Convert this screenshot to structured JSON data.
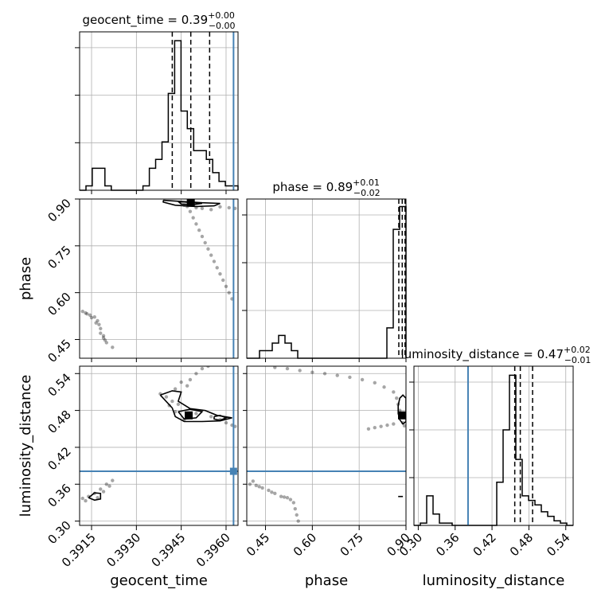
{
  "chart_data": {
    "type": "corner",
    "parameters": [
      {
        "name": "geocent_time",
        "label": "geocent_time",
        "title_main": "geocent_time = 0.39",
        "title_sup": "+0.00",
        "title_sub": "−0.00",
        "range": [
          0.3911,
          0.3964
        ],
        "ticks": [
          0.3915,
          0.393,
          0.3945,
          0.396
        ],
        "tick_labels": [
          "0.3915",
          "0.3930",
          "0.3945",
          "0.3960"
        ],
        "truth": 0.39625,
        "quantiles": [
          0.3942,
          0.39482,
          0.39545
        ],
        "median": 0.39482
      },
      {
        "name": "phase",
        "label": "phase",
        "title_main": "phase = 0.89",
        "title_sup": "+0.01",
        "title_sub": "−0.02",
        "range": [
          0.39,
          0.9
        ],
        "ticks": [
          0.45,
          0.6,
          0.75,
          0.9
        ],
        "tick_labels": [
          "0.45",
          "0.60",
          "0.75",
          "0.90"
        ],
        "truth": null,
        "quantiles": [
          0.877,
          0.888,
          0.897
        ],
        "median": 0.888
      },
      {
        "name": "luminosity_distance",
        "label": "luminosity_distance",
        "title_main": "luminosity_distance = 0.47",
        "title_sup": "+0.02",
        "title_sub": "−0.01",
        "range": [
          0.293,
          0.552
        ],
        "ticks": [
          0.3,
          0.36,
          0.42,
          0.48,
          0.54
        ],
        "tick_labels": [
          "0.30",
          "0.36",
          "0.42",
          "0.48",
          "0.54"
        ],
        "truth": 0.381,
        "quantiles": [
          0.457,
          0.466,
          0.486
        ],
        "median": 0.466
      }
    ],
    "histograms": [
      {
        "param": "geocent_time",
        "bins": 25,
        "counts": [
          0,
          1,
          5,
          5,
          1,
          0,
          0,
          0,
          0,
          0,
          1,
          5,
          7,
          11,
          22,
          34,
          18,
          14,
          9,
          9,
          7,
          4,
          2,
          1,
          1
        ],
        "ymax": 36
      },
      {
        "param": "phase",
        "bins": 25,
        "counts": [
          0,
          0,
          1,
          1,
          2,
          3,
          2,
          1,
          0,
          0,
          0,
          0,
          0,
          0,
          0,
          0,
          0,
          0,
          0,
          0,
          0,
          0,
          4,
          17,
          20
        ],
        "ymax": 21
      },
      {
        "param": "luminosity_distance",
        "bins": 25,
        "counts": [
          0,
          1,
          13,
          5,
          1,
          1,
          0,
          0,
          0,
          0,
          0,
          0,
          0,
          19,
          42,
          66,
          29,
          13,
          11,
          9,
          6,
          4,
          2,
          1,
          0
        ],
        "ymax": 70
      }
    ],
    "pairs": [
      {
        "x": "geocent_time",
        "y": "phase",
        "samples": [
          [
            0.3913,
            0.535
          ],
          [
            0.39145,
            0.528
          ],
          [
            0.3916,
            0.522
          ],
          [
            0.3917,
            0.51
          ],
          [
            0.39175,
            0.498
          ],
          [
            0.3918,
            0.485
          ],
          [
            0.3918,
            0.47
          ],
          [
            0.3919,
            0.455
          ],
          [
            0.392,
            0.44
          ],
          [
            0.3922,
            0.425
          ],
          [
            0.3912,
            0.54
          ],
          [
            0.39135,
            0.532
          ],
          [
            0.3915,
            0.52
          ],
          [
            0.39165,
            0.503
          ],
          [
            0.3919,
            0.462
          ],
          [
            0.39195,
            0.448
          ],
          [
            0.3946,
            0.88
          ],
          [
            0.3947,
            0.876
          ],
          [
            0.395,
            0.872
          ],
          [
            0.3952,
            0.87
          ],
          [
            0.3955,
            0.866
          ],
          [
            0.3948,
            0.86
          ],
          [
            0.3949,
            0.84
          ],
          [
            0.395,
            0.82
          ],
          [
            0.3951,
            0.8
          ],
          [
            0.3952,
            0.78
          ],
          [
            0.3953,
            0.76
          ],
          [
            0.3954,
            0.74
          ],
          [
            0.3955,
            0.72
          ],
          [
            0.3956,
            0.7
          ],
          [
            0.3957,
            0.68
          ],
          [
            0.3958,
            0.66
          ],
          [
            0.3959,
            0.64
          ],
          [
            0.396,
            0.62
          ],
          [
            0.3961,
            0.6
          ],
          [
            0.3962,
            0.58
          ],
          [
            0.3963,
            0.87
          ],
          [
            0.3961,
            0.872
          ],
          [
            0.3958,
            0.875
          ]
        ],
        "contours": [
          [
            [
              0.3939,
              0.896
            ],
            [
              0.3945,
              0.892
            ],
            [
              0.3952,
              0.888
            ],
            [
              0.3958,
              0.886
            ],
            [
              0.3956,
              0.878
            ],
            [
              0.395,
              0.876
            ],
            [
              0.3943,
              0.88
            ],
            [
              0.3939,
              0.89
            ],
            [
              0.3939,
              0.896
            ]
          ],
          [
            [
              0.3944,
              0.892
            ],
            [
              0.3948,
              0.889
            ],
            [
              0.3952,
              0.886
            ],
            [
              0.3949,
              0.882
            ],
            [
              0.3945,
              0.884
            ],
            [
              0.3944,
              0.892
            ]
          ]
        ],
        "peak": [
          0.39482,
          0.888
        ],
        "truth_x": 0.39625,
        "truth_y": null
      },
      {
        "x": "geocent_time",
        "y": "luminosity_distance",
        "samples": [
          [
            0.3912,
            0.337
          ],
          [
            0.3914,
            0.34
          ],
          [
            0.3916,
            0.345
          ],
          [
            0.3918,
            0.352
          ],
          [
            0.392,
            0.36
          ],
          [
            0.3922,
            0.366
          ],
          [
            0.3913,
            0.333
          ],
          [
            0.3917,
            0.338
          ],
          [
            0.3919,
            0.348
          ],
          [
            0.3921,
            0.357
          ],
          [
            0.3938,
            0.507
          ],
          [
            0.394,
            0.502
          ],
          [
            0.3942,
            0.495
          ],
          [
            0.3944,
            0.49
          ],
          [
            0.395,
            0.475
          ],
          [
            0.3955,
            0.47
          ],
          [
            0.3958,
            0.465
          ],
          [
            0.396,
            0.46
          ],
          [
            0.3962,
            0.456
          ],
          [
            0.3963,
            0.454
          ],
          [
            0.3947,
            0.52
          ],
          [
            0.3948,
            0.53
          ],
          [
            0.395,
            0.54
          ],
          [
            0.3952,
            0.548
          ],
          [
            0.3954,
            0.552
          ],
          [
            0.3943,
            0.515
          ],
          [
            0.3945,
            0.526
          ],
          [
            0.3941,
            0.488
          ],
          [
            0.3943,
            0.478
          ],
          [
            0.3946,
            0.465
          ]
        ],
        "contours": [
          [
            [
              0.3938,
              0.505
            ],
            [
              0.3942,
              0.512
            ],
            [
              0.3945,
              0.51
            ],
            [
              0.3944,
              0.495
            ],
            [
              0.3948,
              0.483
            ],
            [
              0.3953,
              0.48
            ],
            [
              0.3957,
              0.472
            ],
            [
              0.3962,
              0.468
            ],
            [
              0.3958,
              0.463
            ],
            [
              0.3952,
              0.462
            ],
            [
              0.3946,
              0.462
            ],
            [
              0.3943,
              0.47
            ],
            [
              0.3942,
              0.484
            ],
            [
              0.3938,
              0.505
            ]
          ],
          [
            [
              0.3944,
              0.478
            ],
            [
              0.3948,
              0.482
            ],
            [
              0.3952,
              0.478
            ],
            [
              0.395,
              0.468
            ],
            [
              0.3946,
              0.466
            ],
            [
              0.3944,
              0.478
            ]
          ],
          [
            [
              0.3956,
              0.47
            ],
            [
              0.3958,
              0.472
            ],
            [
              0.396,
              0.468
            ],
            [
              0.3958,
              0.464
            ],
            [
              0.3956,
              0.466
            ],
            [
              0.3956,
              0.47
            ]
          ],
          [
            [
              0.3914,
              0.338
            ],
            [
              0.3916,
              0.346
            ],
            [
              0.3918,
              0.345
            ],
            [
              0.3918,
              0.336
            ],
            [
              0.3916,
              0.334
            ],
            [
              0.3914,
              0.338
            ]
          ]
        ],
        "peak": [
          0.39475,
          0.472
        ],
        "truth_x": 0.39625,
        "truth_y": 0.381
      },
      {
        "x": "phase",
        "y": "luminosity_distance",
        "samples": [
          [
            0.4,
            0.36
          ],
          [
            0.42,
            0.358
          ],
          [
            0.44,
            0.354
          ],
          [
            0.46,
            0.35
          ],
          [
            0.48,
            0.345
          ],
          [
            0.5,
            0.34
          ],
          [
            0.52,
            0.338
          ],
          [
            0.53,
            0.335
          ],
          [
            0.54,
            0.33
          ],
          [
            0.545,
            0.32
          ],
          [
            0.55,
            0.31
          ],
          [
            0.555,
            0.3
          ],
          [
            0.41,
            0.365
          ],
          [
            0.43,
            0.356
          ],
          [
            0.47,
            0.347
          ],
          [
            0.51,
            0.339
          ],
          [
            0.48,
            0.55
          ],
          [
            0.52,
            0.548
          ],
          [
            0.56,
            0.545
          ],
          [
            0.6,
            0.542
          ],
          [
            0.64,
            0.54
          ],
          [
            0.68,
            0.537
          ],
          [
            0.72,
            0.534
          ],
          [
            0.76,
            0.53
          ],
          [
            0.8,
            0.525
          ],
          [
            0.83,
            0.518
          ],
          [
            0.86,
            0.51
          ],
          [
            0.87,
            0.5
          ],
          [
            0.875,
            0.49
          ],
          [
            0.88,
            0.48
          ],
          [
            0.885,
            0.47
          ],
          [
            0.89,
            0.46
          ],
          [
            0.895,
            0.455
          ],
          [
            0.86,
            0.458
          ],
          [
            0.84,
            0.456
          ],
          [
            0.82,
            0.454
          ],
          [
            0.8,
            0.452
          ],
          [
            0.78,
            0.45
          ]
        ],
        "contours": [
          [
            [
              0.875,
              0.488
            ],
            [
              0.88,
              0.5
            ],
            [
              0.89,
              0.505
            ],
            [
              0.9,
              0.5
            ],
            [
              0.9,
              0.462
            ],
            [
              0.89,
              0.458
            ],
            [
              0.88,
              0.465
            ],
            [
              0.875,
              0.475
            ],
            [
              0.875,
              0.488
            ]
          ],
          [
            [
              0.875,
              0.34
            ],
            [
              0.89,
              0.34
            ]
          ]
        ],
        "peak": [
          0.897,
          0.472
        ],
        "truth_x": null,
        "truth_y": 0.381
      }
    ]
  },
  "style": {
    "truth_color": "#4682b4",
    "line_color": "#000000",
    "grid_color": "#b0b0b0",
    "sample_color": "#000000"
  }
}
